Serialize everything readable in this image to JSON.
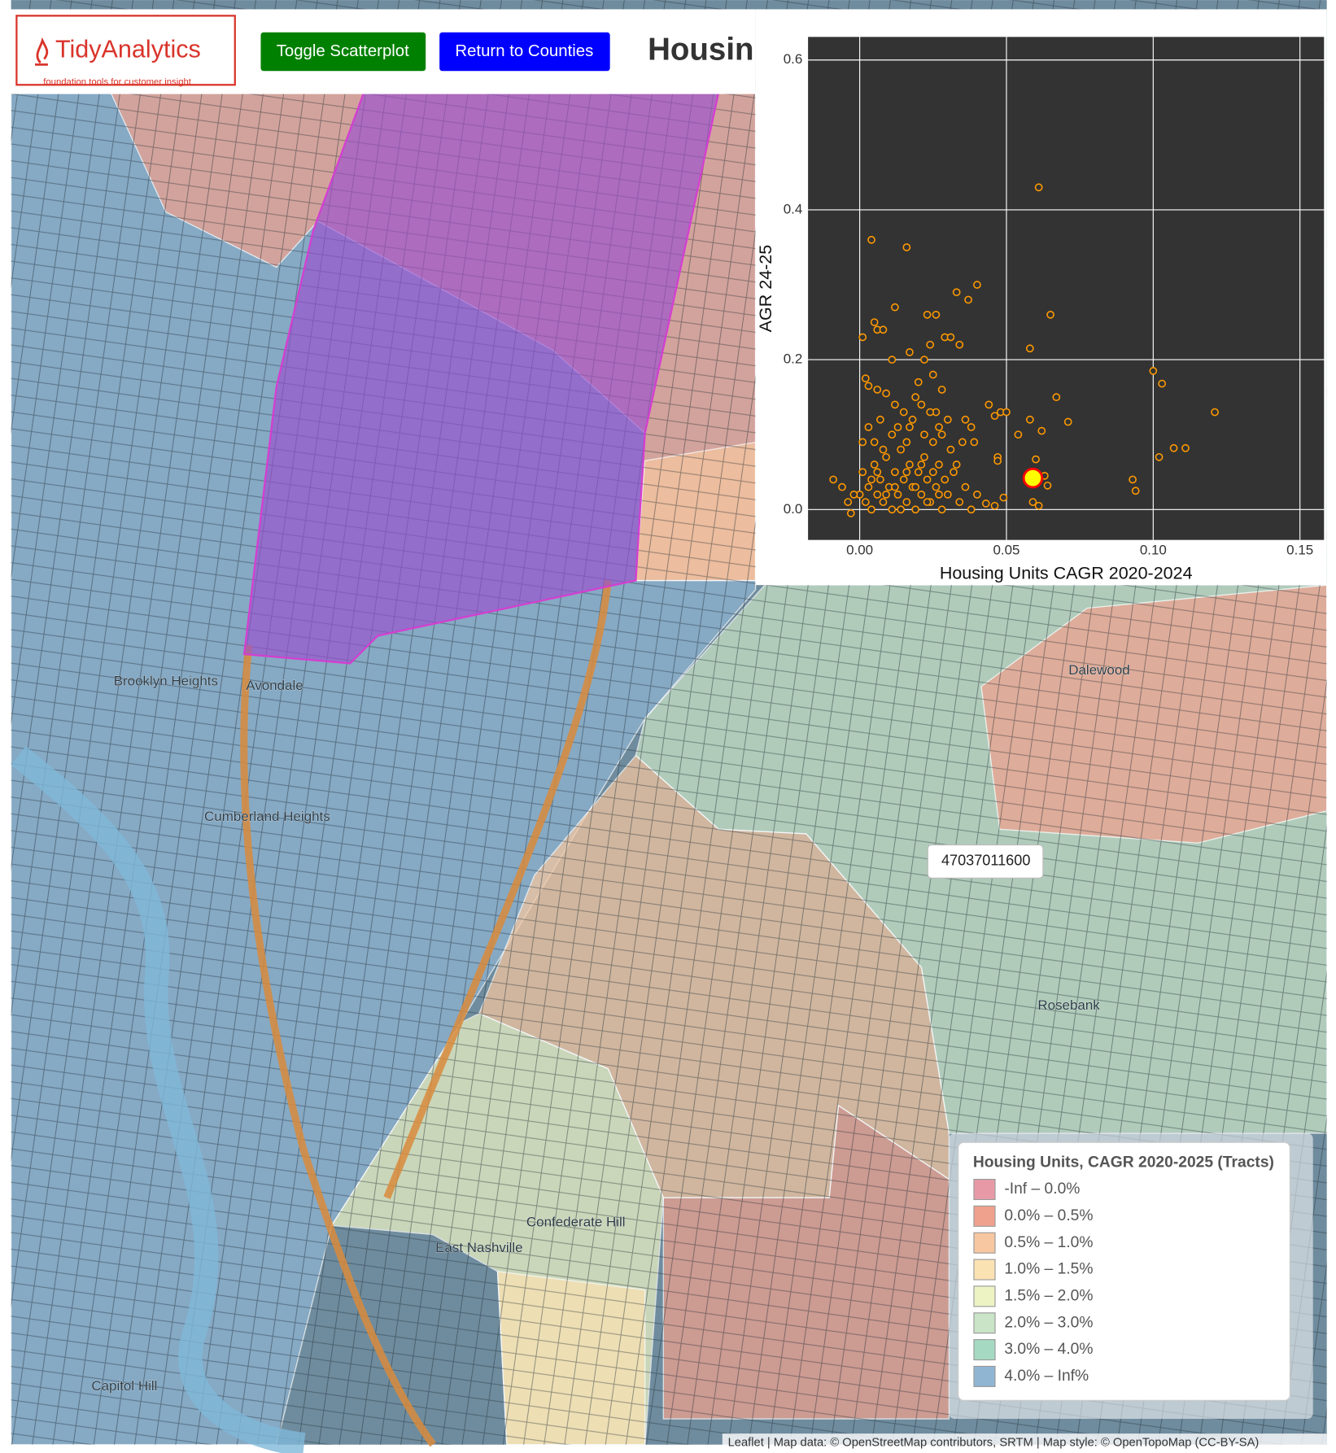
{
  "header": {
    "logo": "TidyAnalytics",
    "tagline": "foundation tools for customer insight",
    "buttons": [
      "Toggle Scatterplot",
      "Return to Counties"
    ],
    "title": "Housin"
  },
  "chart_data": {
    "type": "scatter",
    "xlabel": "Housing Units CAGR 2020-2024",
    "ylabel": "AGR 24-25",
    "xlim": [
      -0.0176,
      0.1582
    ],
    "ylim": [
      -0.0406,
      0.6308
    ],
    "xticks": [
      {
        "value": 0,
        "label": "0.00"
      },
      0.05,
      {
        "value": 0.1,
        "label": "0.10"
      },
      0.15
    ],
    "yticks": [
      {
        "value": 0,
        "label": "0.0"
      },
      0.2,
      0.4,
      0.6
    ],
    "grid": true,
    "series": [
      {
        "color": "#ff9900",
        "fill": "#333333",
        "x": [
          0.061,
          0.004,
          0.016,
          0.04,
          0.037,
          0.033,
          0.012,
          0.023,
          0.026,
          0.065,
          0.005,
          0.006,
          0.008,
          0.001,
          0.017,
          0.029,
          0.031,
          0.034,
          0.024,
          0.011,
          0.022,
          0.058,
          0.1,
          0.103,
          0.121,
          0.067,
          0.071,
          0.062,
          0.058,
          0.054,
          0.102,
          0.107,
          0.111,
          0.093,
          0.094,
          0.06,
          0.063,
          0.064,
          0.061,
          0.059,
          0.047,
          0.047,
          0.049,
          0.046,
          0.043,
          0.044,
          0.046,
          0.048,
          0.05,
          0.038,
          0.036,
          0.039,
          0.031,
          0.028,
          0.026,
          0.019,
          0.021,
          0.02,
          0.028,
          0.025,
          0.002,
          0.003,
          0.006,
          0.009,
          0.012,
          0.015,
          0.017,
          0.0,
          0.001,
          0.002,
          0.003,
          0.004,
          0.005,
          0.006,
          0.007,
          0.008,
          0.009,
          0.01,
          0.011,
          0.012,
          0.013,
          0.014,
          0.015,
          0.016,
          0.017,
          0.018,
          0.019,
          0.02,
          0.021,
          0.022,
          0.023,
          0.024,
          0.025,
          0.026,
          0.027,
          0.028,
          0.029,
          0.03,
          0.032,
          0.034,
          0.036,
          0.038,
          0.04,
          -0.009,
          -0.006,
          -0.004,
          -0.003,
          -0.002,
          0.001,
          0.003,
          0.005,
          0.007,
          0.008,
          0.011,
          0.013,
          0.016,
          0.018,
          0.022,
          0.024,
          0.027,
          0.03,
          0.033,
          0.035,
          0.004,
          0.006,
          0.009,
          0.012,
          0.014,
          0.016,
          0.019,
          0.021,
          0.023,
          0.025,
          0.027
        ],
        "values": [
          0.43,
          0.36,
          0.35,
          0.3,
          0.28,
          0.29,
          0.27,
          0.26,
          0.26,
          0.26,
          0.25,
          0.24,
          0.24,
          0.23,
          0.21,
          0.23,
          0.23,
          0.22,
          0.22,
          0.2,
          0.2,
          0.215,
          0.185,
          0.168,
          0.13,
          0.15,
          0.117,
          0.105,
          0.12,
          0.1,
          0.07,
          0.082,
          0.082,
          0.04,
          0.025,
          0.067,
          0.045,
          0.032,
          0.005,
          0.01,
          0.07,
          0.065,
          0.016,
          0.005,
          0.008,
          0.14,
          0.125,
          0.13,
          0.13,
          0.11,
          0.12,
          0.09,
          0.08,
          0.1,
          0.13,
          0.15,
          0.14,
          0.17,
          0.16,
          0.18,
          0.175,
          0.165,
          0.16,
          0.155,
          0.14,
          0.13,
          0.11,
          0.02,
          0.05,
          0.01,
          0.03,
          0.0,
          0.06,
          0.02,
          0.04,
          0.01,
          0.07,
          0.03,
          0.0,
          0.05,
          0.02,
          0.08,
          0.04,
          0.01,
          0.06,
          0.03,
          0.0,
          0.05,
          0.02,
          0.07,
          0.04,
          0.01,
          0.09,
          0.03,
          0.06,
          0.0,
          0.04,
          0.02,
          0.05,
          0.01,
          0.03,
          0.0,
          0.02,
          0.04,
          0.03,
          0.01,
          -0.005,
          0.02,
          0.09,
          0.11,
          0.09,
          0.12,
          0.08,
          0.1,
          0.11,
          0.09,
          0.12,
          0.1,
          0.13,
          0.11,
          0.12,
          0.06,
          0.09,
          0.04,
          0.05,
          0.02,
          0.03,
          0.0,
          0.05,
          0.03,
          0.06,
          0.01,
          0.05,
          0.02
        ]
      },
      {
        "color": "#ff0000",
        "fill": "#ffff00",
        "highlight": true,
        "x": [
          0.059
        ],
        "values": [
          0.042
        ]
      }
    ]
  },
  "map": {
    "tooltip": "47037011600",
    "places": [
      "Dalewood",
      "Rosebank",
      "Brooklyn Heights",
      "Avondale",
      "Cumberland Heights",
      "East Nashville",
      "Confederate Hill",
      "Capitol Hill"
    ],
    "legend": {
      "title": "Housing Units, CAGR 2020-2025 (Tracts)",
      "items": [
        {
          "label": "-Inf – 0.0%",
          "color": "#e79aa6"
        },
        {
          "label": "0.0% – 0.5%",
          "color": "#f0a18e"
        },
        {
          "label": "0.5% – 1.0%",
          "color": "#f6c7a0"
        },
        {
          "label": "1.0% – 1.5%",
          "color": "#fbe2b3"
        },
        {
          "label": "1.5% – 2.0%",
          "color": "#eef3c4"
        },
        {
          "label": "2.0% – 3.0%",
          "color": "#c9e4c6"
        },
        {
          "label": "3.0% – 4.0%",
          "color": "#a6d9c2"
        },
        {
          "label": "4.0% – Inf%",
          "color": "#8fb5d3"
        }
      ]
    },
    "attribution": "Leaflet | Map data: © OpenStreetMap contributors, SRTM | Map style: © OpenTopoMap (CC-BY-SA)"
  }
}
